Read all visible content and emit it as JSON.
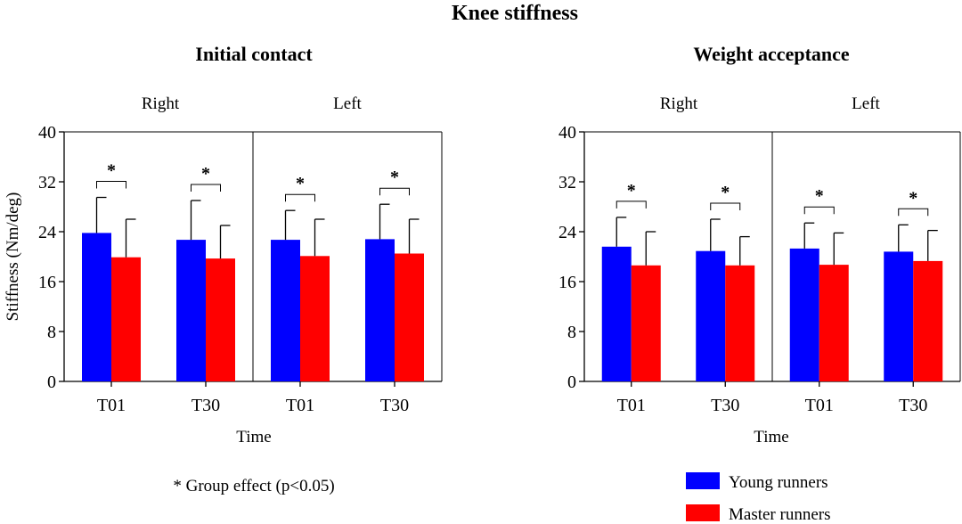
{
  "figure": {
    "title": "Knee stiffness",
    "footnote": "* Group effect (p<0.05)"
  },
  "colors": {
    "young": "#0000ff",
    "master": "#ff0000",
    "axis": "#000000"
  },
  "legend": {
    "items": [
      {
        "label": "Young runners",
        "color": "#0000ff"
      },
      {
        "label": "Master runners",
        "color": "#ff0000"
      }
    ]
  },
  "chart_data": [
    {
      "type": "bar",
      "title": "Initial contact",
      "xlabel": "Time",
      "ylabel": "Stiffness (Nm/deg)",
      "ylim": [
        0,
        40
      ],
      "yticks": [
        0,
        8,
        16,
        24,
        32,
        40
      ],
      "panels": [
        {
          "label": "Right",
          "categories": [
            "T01",
            "T30"
          ],
          "series": [
            {
              "name": "Young runners",
              "values": [
                23.8,
                22.7
              ],
              "errors": [
                5.7,
                6.3
              ]
            },
            {
              "name": "Master runners",
              "values": [
                19.9,
                19.7
              ],
              "errors": [
                6.1,
                5.3
              ]
            }
          ],
          "significance": [
            "*",
            "*"
          ]
        },
        {
          "label": "Left",
          "categories": [
            "T01",
            "T30"
          ],
          "series": [
            {
              "name": "Young runners",
              "values": [
                22.7,
                22.8
              ],
              "errors": [
                4.7,
                5.6
              ]
            },
            {
              "name": "Master runners",
              "values": [
                20.1,
                20.5
              ],
              "errors": [
                5.9,
                5.5
              ]
            }
          ],
          "significance": [
            "*",
            "*"
          ]
        }
      ]
    },
    {
      "type": "bar",
      "title": "Weight acceptance",
      "xlabel": "Time",
      "ylabel": "",
      "ylim": [
        0,
        40
      ],
      "yticks": [
        0,
        8,
        16,
        24,
        32,
        40
      ],
      "panels": [
        {
          "label": "Right",
          "categories": [
            "T01",
            "T30"
          ],
          "series": [
            {
              "name": "Young runners",
              "values": [
                21.6,
                20.9
              ],
              "errors": [
                4.7,
                5.1
              ]
            },
            {
              "name": "Master runners",
              "values": [
                18.6,
                18.6
              ],
              "errors": [
                5.4,
                4.6
              ]
            }
          ],
          "significance": [
            "*",
            "*"
          ]
        },
        {
          "label": "Left",
          "categories": [
            "T01",
            "T30"
          ],
          "series": [
            {
              "name": "Young runners",
              "values": [
                21.3,
                20.8
              ],
              "errors": [
                4.1,
                4.3
              ]
            },
            {
              "name": "Master runners",
              "values": [
                18.7,
                19.3
              ],
              "errors": [
                5.1,
                4.9
              ]
            }
          ],
          "significance": [
            "*",
            "*"
          ]
        }
      ]
    }
  ]
}
